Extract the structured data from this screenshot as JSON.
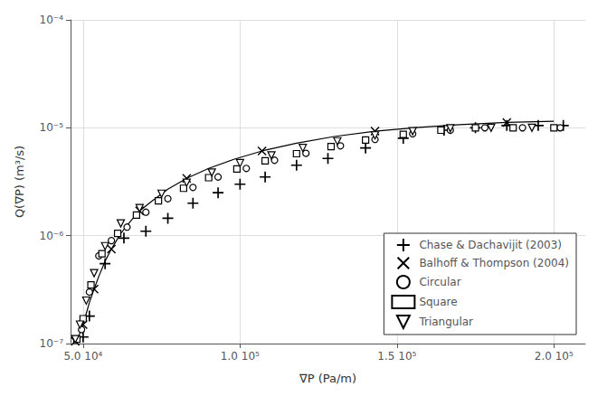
{
  "chart_data": {
    "type": "scatter",
    "xlabel": "∇P (Pa/m)",
    "ylabel": "Q(∇P) (m³/s)",
    "log": "y",
    "grid": true,
    "legend": "lower right",
    "xlim": [
      46000,
      210000
    ],
    "ylim": [
      1e-07,
      0.0001
    ],
    "xticks": [
      {
        "value": 50000,
        "label": "5.0 10⁴"
      },
      {
        "value": 100000,
        "label": "1.0 10⁵"
      },
      {
        "value": 150000,
        "label": "1.5 10⁵"
      },
      {
        "value": 200000,
        "label": "2.0 10⁵"
      }
    ],
    "yticks": [
      {
        "value": 1e-07,
        "label": "10⁻⁷"
      },
      {
        "value": 1e-06,
        "label": "10⁻⁶"
      },
      {
        "value": 1e-05,
        "label": "10⁻⁵"
      },
      {
        "value": 0.0001,
        "label": "10⁻⁴"
      }
    ],
    "series": [
      {
        "type": "line",
        "line_style": "solid",
        "color": "#000000",
        "x": [
          47500,
          48500,
          49200,
          50000,
          51000,
          52000,
          53500,
          55000,
          57000,
          59000,
          62000,
          65000,
          68000,
          72000,
          77000,
          83000,
          90000,
          98000,
          107000,
          118000,
          130000,
          143000,
          157000,
          170000,
          185000,
          200000
        ],
        "values": [
          1.05e-07,
          1.15e-07,
          1.3e-07,
          1.5e-07,
          1.9e-07,
          2.4e-07,
          3.2e-07,
          4.2e-07,
          5.8e-07,
          7.5e-07,
          1.05e-06,
          1.35e-06,
          1.7e-06,
          2.1e-06,
          2.7e-06,
          3.4e-06,
          4.2e-06,
          5.1e-06,
          6.1e-06,
          7.2e-06,
          8.3e-06,
          9.3e-06,
          1.01e-05,
          1.07e-05,
          1.12e-05,
          1.15e-05
        ]
      },
      {
        "name": "Chase & Dachavijit (2003)",
        "type": "scatter",
        "marker": "plus",
        "color": "#000000",
        "x": [
          50000,
          52000,
          57000,
          63000,
          70000,
          77000,
          85000,
          93000,
          100000,
          108000,
          118000,
          128000,
          140000,
          152000,
          165000,
          175000,
          185000,
          195000,
          203000
        ],
        "values": [
          1.15e-07,
          1.8e-07,
          5.5e-07,
          9.5e-07,
          1.1e-06,
          1.45e-06,
          2e-06,
          2.5e-06,
          3e-06,
          3.5e-06,
          4.5e-06,
          5.2e-06,
          6.5e-06,
          8e-06,
          9.5e-06,
          1e-05,
          1.05e-05,
          1.05e-05,
          1.05e-05
        ]
      },
      {
        "name": "Balhoff & Thompson (2004)",
        "type": "scatter",
        "marker": "x",
        "color": "#000000",
        "x": [
          47500,
          50000,
          53500,
          59000,
          68000,
          83000,
          107000,
          143000,
          185000
        ],
        "values": [
          1.05e-07,
          1.5e-07,
          3.2e-07,
          7.5e-07,
          1.7e-06,
          3.4e-06,
          6.1e-06,
          9.3e-06,
          1.12e-05
        ]
      },
      {
        "name": "Circular",
        "type": "scatter",
        "marker": "circle",
        "color": "#000000",
        "x": [
          49500,
          52000,
          55000,
          59000,
          64000,
          70000,
          77000,
          85000,
          93000,
          102000,
          111000,
          121000,
          132000,
          143000,
          155000,
          167000,
          178000,
          190000,
          202000
        ],
        "values": [
          1.35e-07,
          3e-07,
          6.5e-07,
          9e-07,
          1.2e-06,
          1.65e-06,
          2.2e-06,
          2.8e-06,
          3.5e-06,
          4.2e-06,
          5e-06,
          5.8e-06,
          6.8e-06,
          7.8e-06,
          8.8e-06,
          9.5e-06,
          1e-05,
          1e-05,
          1e-05
        ]
      },
      {
        "name": "Square",
        "type": "scatter",
        "marker": "square",
        "color": "#000000",
        "x": [
          48000,
          50000,
          52500,
          56000,
          61000,
          67000,
          74000,
          82000,
          90000,
          99000,
          108000,
          118000,
          129000,
          140000,
          152000,
          164000,
          175000,
          187000,
          200000
        ],
        "values": [
          1.1e-07,
          1.7e-07,
          3.5e-07,
          6.8e-07,
          1.05e-06,
          1.55e-06,
          2.1e-06,
          2.75e-06,
          3.45e-06,
          4.15e-06,
          4.95e-06,
          5.75e-06,
          6.7e-06,
          7.7e-06,
          8.7e-06,
          9.5e-06,
          1e-05,
          1e-05,
          1e-05
        ]
      },
      {
        "name": "Triangular",
        "type": "scatter",
        "marker": "triangle_down",
        "color": "#000000",
        "x": [
          47500,
          49000,
          51000,
          53500,
          57000,
          62000,
          68000,
          75000,
          83000,
          91000,
          100000,
          110000,
          120000,
          131000,
          143000,
          155000,
          167000,
          180000,
          193000
        ],
        "values": [
          1.1e-07,
          1.5e-07,
          2.5e-07,
          4.5e-07,
          8e-07,
          1.3e-06,
          1.8e-06,
          2.45e-06,
          3.1e-06,
          3.85e-06,
          4.7e-06,
          5.55e-06,
          6.5e-06,
          7.5e-06,
          8.5e-06,
          9.3e-06,
          9.9e-06,
          1e-05,
          1e-05
        ]
      }
    ]
  }
}
